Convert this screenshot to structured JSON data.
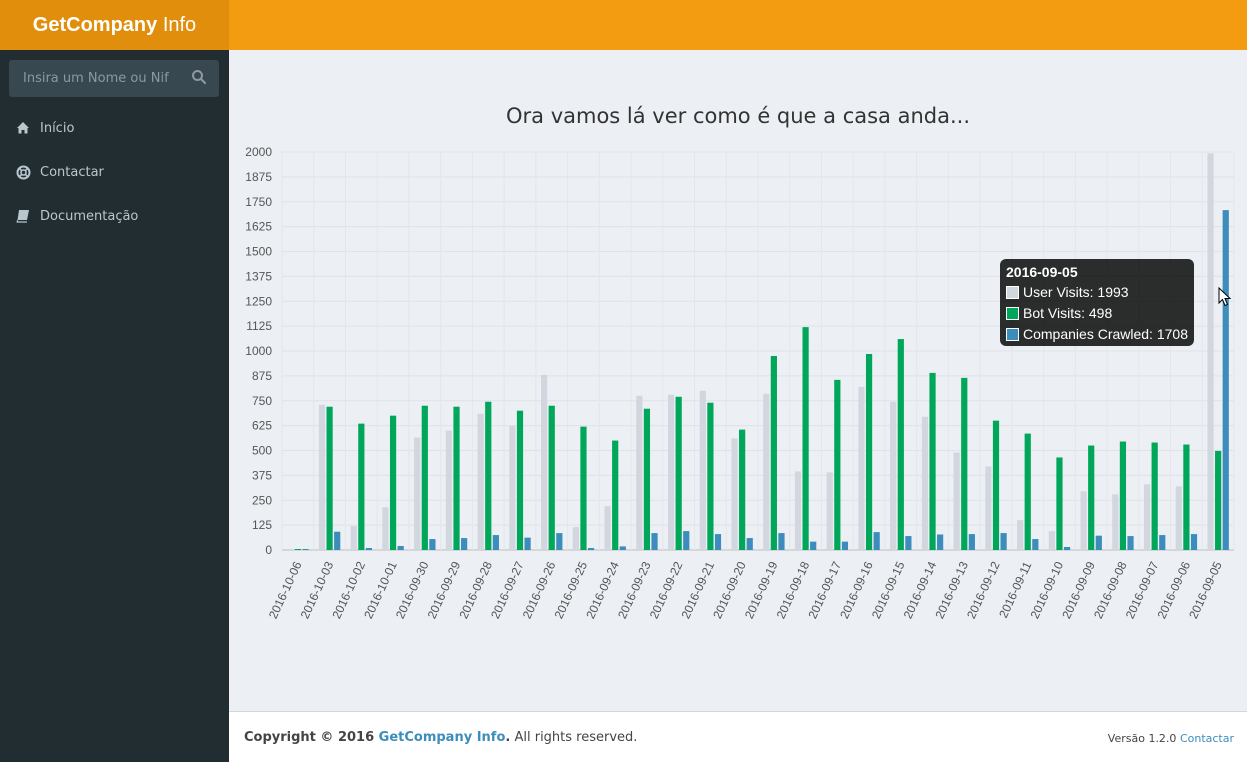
{
  "app": {
    "brand_bold": "GetCompany",
    "brand_light": " Info",
    "colors": {
      "header": "#f39c12",
      "logo_bg": "#e08e0b",
      "sidebar": "#222d32"
    }
  },
  "search": {
    "placeholder": "Insira um Nome ou Nif",
    "icon": "search-icon"
  },
  "nav": [
    {
      "label": "Início",
      "icon": "home-icon"
    },
    {
      "label": "Contactar",
      "icon": "life-ring-icon"
    },
    {
      "label": "Documentação",
      "icon": "book-icon"
    }
  ],
  "page": {
    "title": "Ora vamos lá ver como é que a casa anda..."
  },
  "chart_data": {
    "type": "bar",
    "title": "",
    "ylim": [
      0,
      2000
    ],
    "yticks": [
      0,
      125,
      250,
      375,
      500,
      625,
      750,
      875,
      1000,
      1125,
      1250,
      1375,
      1500,
      1625,
      1750,
      1875,
      2000
    ],
    "grid": true,
    "categories": [
      "2016-10-06",
      "2016-10-03",
      "2016-10-02",
      "2016-10-01",
      "2016-09-30",
      "2016-09-29",
      "2016-09-28",
      "2016-09-27",
      "2016-09-26",
      "2016-09-25",
      "2016-09-24",
      "2016-09-23",
      "2016-09-22",
      "2016-09-21",
      "2016-09-20",
      "2016-09-19",
      "2016-09-18",
      "2016-09-17",
      "2016-09-16",
      "2016-09-15",
      "2016-09-14",
      "2016-09-13",
      "2016-09-12",
      "2016-09-11",
      "2016-09-10",
      "2016-09-09",
      "2016-09-08",
      "2016-09-07",
      "2016-09-06",
      "2016-09-05"
    ],
    "series": [
      {
        "name": "User Visits",
        "color": "#d2d6de",
        "values": [
          5,
          730,
          120,
          215,
          565,
          600,
          685,
          625,
          880,
          115,
          220,
          775,
          780,
          800,
          560,
          785,
          395,
          390,
          820,
          745,
          670,
          490,
          420,
          150,
          95,
          295,
          280,
          330,
          320,
          1993
        ]
      },
      {
        "name": "Bot Visits",
        "color": "#00a65a",
        "values": [
          5,
          720,
          635,
          675,
          725,
          720,
          745,
          700,
          725,
          620,
          550,
          710,
          770,
          740,
          605,
          975,
          1120,
          855,
          985,
          1060,
          890,
          865,
          650,
          585,
          465,
          525,
          545,
          540,
          530,
          498
        ]
      },
      {
        "name": "Companies Crawled",
        "color": "#3c8dbc",
        "values": [
          5,
          92,
          10,
          20,
          55,
          60,
          75,
          62,
          85,
          10,
          18,
          85,
          95,
          80,
          60,
          85,
          42,
          42,
          90,
          70,
          78,
          80,
          85,
          55,
          15,
          72,
          70,
          75,
          80,
          1708
        ]
      }
    ]
  },
  "tooltip": {
    "title": "2016-09-05",
    "rows": [
      "User Visits: 1993",
      "Bot Visits: 498",
      "Companies Crawled: 1708"
    ]
  },
  "footer": {
    "copyright_prefix": "Copyright © 2016 ",
    "brand_link": "GetCompany Info",
    "copyright_suffix": ". All rights reserved.",
    "version": "Versão 1.2.0 ",
    "contact_link": "Contactar"
  }
}
